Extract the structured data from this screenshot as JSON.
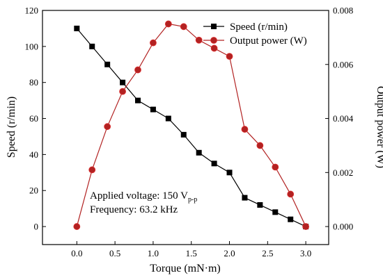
{
  "chart_data": {
    "type": "line",
    "xlabel": "Torque (mN·m)",
    "ylabel_left": "Speed (r/min)",
    "ylabel_right": "Output power (W)",
    "xlim": [
      -0.45,
      3.3
    ],
    "ylim_left": [
      -10,
      120
    ],
    "ylim_right": [
      -0.000667,
      0.008
    ],
    "x_ticks": [
      0.0,
      0.5,
      1.0,
      1.5,
      2.0,
      2.5,
      3.0
    ],
    "x_tick_labels": [
      "0.0",
      "0.5",
      "1.0",
      "1.5",
      "2.0",
      "2.5",
      "3.0"
    ],
    "y_left_ticks": [
      0,
      20,
      40,
      60,
      80,
      100,
      120
    ],
    "y_left_tick_labels": [
      "0",
      "20",
      "40",
      "60",
      "80",
      "100",
      "120"
    ],
    "y_right_ticks": [
      0,
      0.002,
      0.004,
      0.006,
      0.008
    ],
    "y_right_tick_labels": [
      "0.000",
      "0.002",
      "0.004",
      "0.006",
      "0.008"
    ],
    "grid": false,
    "legend_position": "top-right",
    "series": [
      {
        "name": "Speed (r/min)",
        "axis": "left",
        "color": "#000000",
        "marker": "square",
        "x": [
          0.0,
          0.2,
          0.4,
          0.6,
          0.8,
          1.0,
          1.2,
          1.4,
          1.6,
          1.8,
          2.0,
          2.2,
          2.4,
          2.6,
          2.8,
          3.0
        ],
        "values": [
          110,
          100,
          90,
          80,
          70,
          65,
          60,
          51,
          41,
          35,
          30,
          16,
          12,
          8,
          4,
          0
        ]
      },
      {
        "name": "Output power (W)",
        "axis": "right",
        "color": "#b22222",
        "marker": "circle",
        "x": [
          0.0,
          0.2,
          0.4,
          0.6,
          0.8,
          1.0,
          1.2,
          1.4,
          1.6,
          1.8,
          2.0,
          2.2,
          2.4,
          2.6,
          2.8,
          3.0
        ],
        "values": [
          0.0,
          0.0021,
          0.0037,
          0.005,
          0.0058,
          0.0068,
          0.0075,
          0.0074,
          0.0069,
          0.0066,
          0.0063,
          0.0036,
          0.003,
          0.0022,
          0.0012,
          0.0
        ]
      }
    ],
    "annotation": {
      "line1": "Applied voltage: 150 V",
      "line1_sub": "p-p",
      "line2": "Frequency: 63.2 kHz"
    }
  }
}
